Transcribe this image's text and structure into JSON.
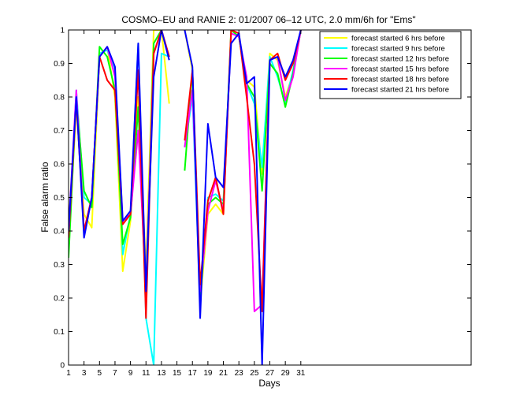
{
  "chart_data": {
    "type": "line",
    "title": "COSMO–EU and RANIE 2: 01/2007 06–12 UTC, 2.0 mm/6h for \"Ems\"",
    "xlabel": "Days",
    "ylabel": "False alarm ratio",
    "xlim": [
      1,
      53
    ],
    "ylim": [
      0,
      1
    ],
    "xticks": [
      1,
      3,
      5,
      7,
      9,
      11,
      13,
      15,
      17,
      19,
      21,
      23,
      25,
      27,
      29,
      31
    ],
    "yticks": [
      "0",
      "0.1",
      "0.2",
      "0.3",
      "0.4",
      "0.5",
      "0.6",
      "0.7",
      "0.8",
      "0.9",
      "1"
    ],
    "grid": false,
    "legend_position": "top-right",
    "x": [
      1,
      2,
      3,
      4,
      5,
      6,
      7,
      8,
      9,
      10,
      11,
      12,
      13,
      14,
      15,
      16,
      17,
      18,
      19,
      20,
      21,
      22,
      23,
      24,
      25,
      26,
      27,
      28,
      29,
      30,
      31
    ],
    "series": [
      {
        "name": "forecast started 6 hrs before",
        "color": "#ffff00",
        "values": [
          0.36,
          0.77,
          0.45,
          0.41,
          0.92,
          0.95,
          0.8,
          0.28,
          0.43,
          0.8,
          0.28,
          1.0,
          1.0,
          0.78,
          null,
          1.0,
          0.88,
          0.18,
          0.45,
          0.48,
          0.45,
          1.0,
          0.98,
          0.85,
          0.83,
          0.57,
          0.93,
          0.91,
          0.8,
          0.87,
          1.0
        ]
      },
      {
        "name": "forecast started 9 hrs before",
        "color": "#00ffff",
        "values": [
          0.38,
          0.82,
          0.5,
          0.48,
          0.93,
          0.94,
          0.88,
          0.33,
          0.45,
          0.96,
          0.14,
          0.0,
          0.93,
          0.92,
          null,
          0.65,
          0.8,
          0.19,
          0.5,
          0.51,
          0.49,
          0.99,
          0.98,
          0.84,
          0.78,
          0.59,
          0.92,
          0.86,
          0.78,
          0.88,
          1.0
        ]
      },
      {
        "name": "forecast started 12 hrs before",
        "color": "#00ff00",
        "values": [
          0.32,
          0.8,
          0.52,
          0.47,
          0.95,
          0.92,
          0.82,
          0.36,
          0.44,
          0.77,
          0.22,
          0.96,
          1.0,
          0.92,
          null,
          0.58,
          0.88,
          0.2,
          0.48,
          0.5,
          0.48,
          1.0,
          0.98,
          0.84,
          0.8,
          0.52,
          0.9,
          0.87,
          0.77,
          0.87,
          1.0
        ]
      },
      {
        "name": "forecast started 15 hrs before",
        "color": "#ff00ff",
        "values": [
          0.4,
          0.82,
          0.4,
          0.5,
          0.92,
          0.95,
          0.86,
          0.43,
          0.45,
          0.7,
          0.22,
          0.93,
          1.0,
          0.92,
          null,
          0.65,
          0.82,
          0.22,
          0.46,
          0.55,
          0.46,
          0.99,
          0.98,
          0.86,
          0.16,
          0.18,
          0.91,
          0.92,
          0.79,
          0.86,
          1.0
        ]
      },
      {
        "name": "forecast started 18 hrs before",
        "color": "#ff0000",
        "values": [
          0.38,
          0.79,
          0.4,
          0.5,
          0.92,
          0.85,
          0.82,
          0.42,
          0.45,
          0.88,
          0.14,
          0.93,
          1.0,
          0.92,
          null,
          0.67,
          0.88,
          0.24,
          0.49,
          0.56,
          0.45,
          1.0,
          0.99,
          0.8,
          0.6,
          0.16,
          0.91,
          0.93,
          0.85,
          0.9,
          1.0
        ]
      },
      {
        "name": "forecast started 21 hrs before",
        "color": "#0000ff",
        "values": [
          0.4,
          0.8,
          0.38,
          0.5,
          0.92,
          0.95,
          0.89,
          0.43,
          0.46,
          0.96,
          0.22,
          0.86,
          1.0,
          0.91,
          null,
          1.0,
          0.89,
          0.14,
          0.72,
          0.56,
          0.53,
          0.96,
          0.99,
          0.84,
          0.86,
          0.0,
          0.91,
          0.92,
          0.86,
          0.91,
          1.0
        ]
      }
    ]
  }
}
